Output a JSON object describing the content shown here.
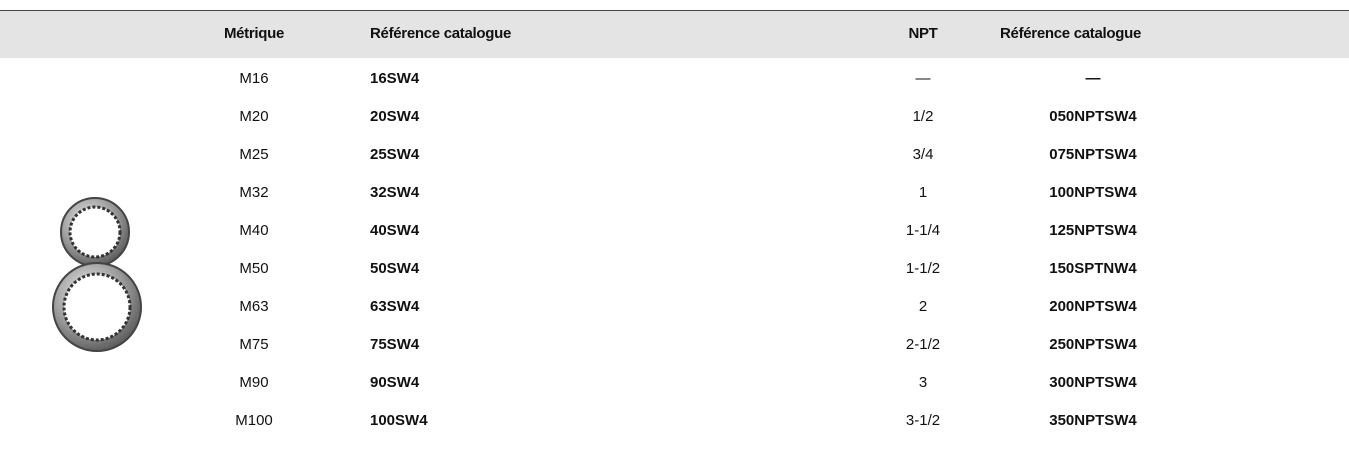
{
  "table": {
    "header": [
      "Métrique",
      "Référence catalogue",
      "NPT",
      "Référence catalogue"
    ],
    "rows": [
      [
        "M16",
        "16SW4",
        "—",
        "—"
      ],
      [
        "M20",
        "20SW4",
        "1/2",
        "050NPTSW4"
      ],
      [
        "M25",
        "25SW4",
        "3/4",
        "075NPTSW4"
      ],
      [
        "M32",
        "32SW4",
        "1",
        "100NPTSW4"
      ],
      [
        "M40",
        "40SW4",
        "1-1/4",
        "125NPTSW4"
      ],
      [
        "M50",
        "50SW4",
        "1-1/2",
        "150SPTNW4"
      ],
      [
        "M63",
        "63SW4",
        "2",
        "200NPTSW4"
      ],
      [
        "M75",
        "75SW4",
        "2-1/2",
        "250NPTSW4"
      ],
      [
        "M90",
        "90SW4",
        "3",
        "300NPTSW4"
      ],
      [
        "M100",
        "100SW4",
        "3-1/2",
        "350NPTSW4"
      ]
    ]
  }
}
